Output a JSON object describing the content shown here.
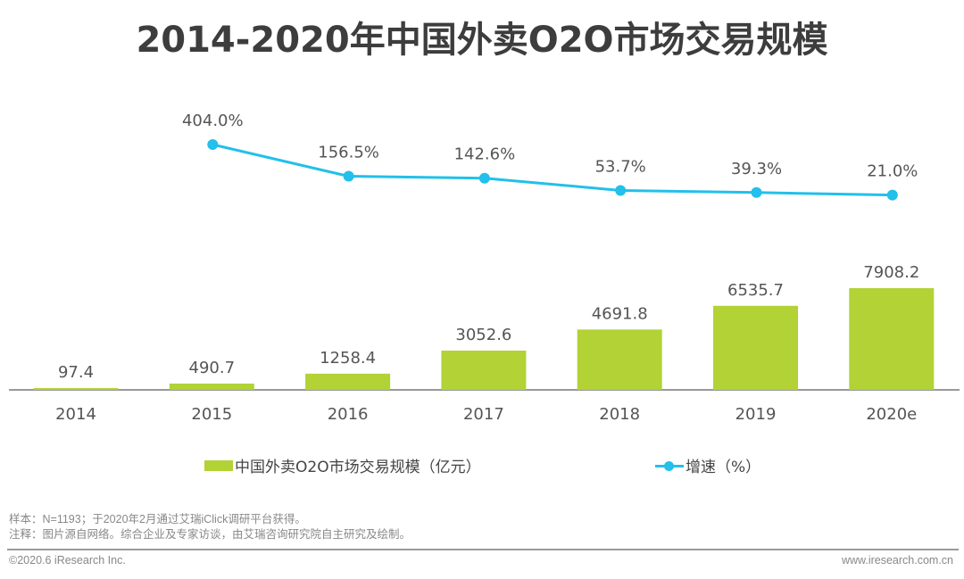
{
  "chart_data": {
    "type": "bar",
    "title": "2014-2020年中国外卖O2O市场交易规模",
    "xlabel": "",
    "ylabel": "",
    "categories": [
      "2014",
      "2015",
      "2016",
      "2017",
      "2018",
      "2019",
      "2020e"
    ],
    "series": [
      {
        "name": "中国外卖O2O市场交易规模（亿元）",
        "type": "bar",
        "values": [
          97.4,
          490.7,
          1258.4,
          3052.6,
          4691.8,
          6535.7,
          7908.2
        ],
        "labels": [
          "97.4",
          "490.7",
          "1258.4",
          "3052.6",
          "4691.8",
          "6535.7",
          "7908.2"
        ],
        "color": "#b2d235"
      },
      {
        "name": "增速（%）",
        "type": "line",
        "values": [
          null,
          404.0,
          156.5,
          142.6,
          53.7,
          39.3,
          21.0
        ],
        "labels": [
          "",
          "404.0%",
          "156.5%",
          "142.6%",
          "53.7%",
          "39.3%",
          "21.0%"
        ],
        "color": "#22c0ea"
      }
    ],
    "grid": false,
    "legend_position": "bottom"
  },
  "legend": {
    "bar_label": "中国外卖O2O市场交易规模（亿元）",
    "line_label": "增速（%）"
  },
  "footer": {
    "sample_note": "样本：N=1193；于2020年2月通过艾瑞iClick调研平台获得。",
    "source_note": "注释：图片源自网络。综合企业及专家访谈，由艾瑞咨询研究院自主研究及绘制。",
    "copyright": "©2020.6 iResearch Inc.",
    "website": "www.iresearch.com.cn"
  },
  "colors": {
    "bar": "#b2d235",
    "line": "#22c0ea",
    "axis": "#999999",
    "text": "#555555",
    "title": "#3d3d3d"
  }
}
